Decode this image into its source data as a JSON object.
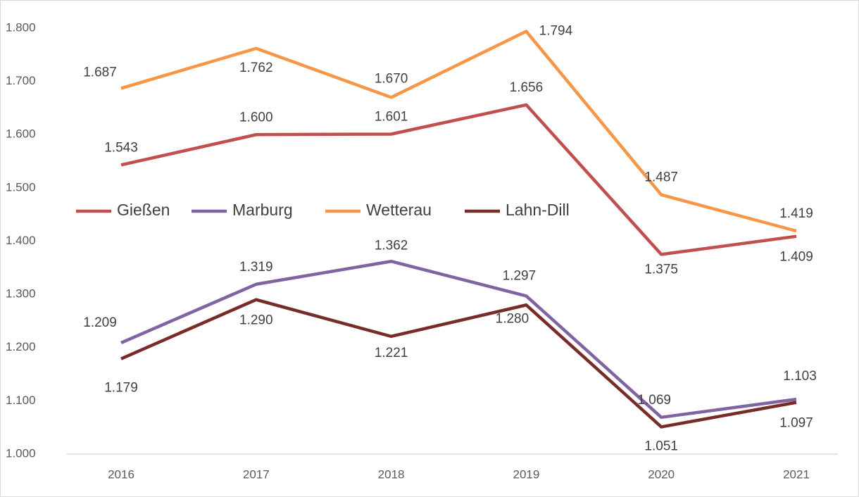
{
  "chart_data": {
    "type": "line",
    "categories": [
      "2016",
      "2017",
      "2018",
      "2019",
      "2020",
      "2021"
    ],
    "series": [
      {
        "name": "Gießen",
        "color": "#c0504d",
        "values": [
          1543,
          1600,
          1601,
          1656,
          1375,
          1409
        ],
        "value_labels": [
          "1.543",
          "1.600",
          "1.601",
          "1.656",
          "1.375",
          "1.409"
        ]
      },
      {
        "name": "Marburg",
        "color": "#8064a2",
        "values": [
          1209,
          1319,
          1362,
          1297,
          1069,
          1103
        ],
        "value_labels": [
          "1.209",
          "1.319",
          "1.362",
          "1.297",
          "1.069",
          "1.103"
        ]
      },
      {
        "name": "Wetterau",
        "color": "#f79646",
        "values": [
          1687,
          1762,
          1670,
          1794,
          1487,
          1419
        ],
        "value_labels": [
          "1.687",
          "1.762",
          "1.670",
          "1.794",
          "1.487",
          "1.419"
        ]
      },
      {
        "name": "Lahn-Dill",
        "color": "#772c2a",
        "values": [
          1179,
          1290,
          1221,
          1280,
          1051,
          1097
        ],
        "value_labels": [
          "1.179",
          "1.290",
          "1.221",
          "1.280",
          "1.051",
          "1.097"
        ]
      }
    ],
    "ylim": [
      1000,
      1800
    ],
    "yticks": [
      {
        "value": 1000,
        "label": "1.000"
      },
      {
        "value": 1100,
        "label": "1.100"
      },
      {
        "value": 1200,
        "label": "1.200"
      },
      {
        "value": 1300,
        "label": "1.300"
      },
      {
        "value": 1400,
        "label": "1.400"
      },
      {
        "value": 1500,
        "label": "1.500"
      },
      {
        "value": 1600,
        "label": "1.600"
      },
      {
        "value": 1700,
        "label": "1.700"
      },
      {
        "value": 1800,
        "label": "1.800"
      }
    ],
    "grid": false,
    "legend": "inside"
  }
}
